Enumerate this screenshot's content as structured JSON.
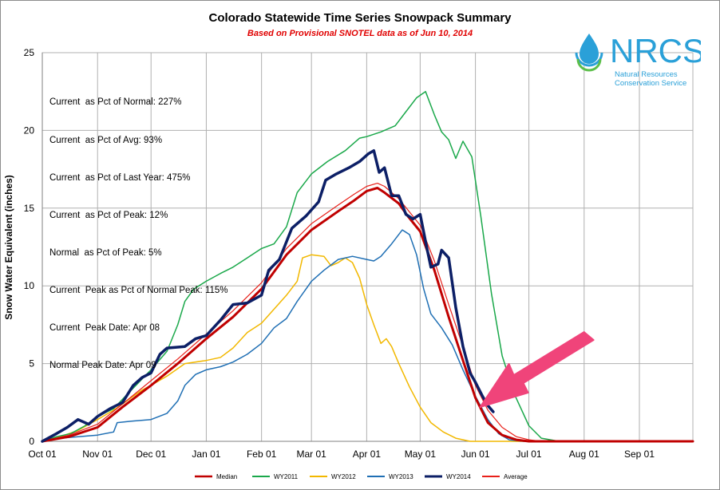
{
  "title": "Colorado Statewide Time Series Snowpack Summary",
  "subtitle": "Based on Provisional SNOTEL data as of Jun 10, 2014",
  "stats": [
    "Current  as Pct of Normal: 227%",
    "Current  as Pct of Avg: 93%",
    "Current  as Pct of Last Year: 475%",
    "Current  as Pct of Peak: 12%",
    "Normal  as Pct of Peak: 5%",
    "Current  Peak as Pct of Normal Peak: 115%",
    "Current  Peak Date: Apr 08",
    "Normal Peak Date: Apr 09"
  ],
  "logo": {
    "name": "NRCS",
    "line1": "Natural Resources",
    "line2": "Conservation Service",
    "color": "#2aa0d8"
  },
  "chart_data": {
    "type": "line",
    "ylabel": "Snow Water Equivalent (inches)",
    "xlabel": "",
    "ylim": [
      0,
      25
    ],
    "yticks": [
      0,
      5,
      10,
      15,
      20,
      25
    ],
    "x_ticks": [
      "Oct 01",
      "Nov 01",
      "Dec 01",
      "Jan 01",
      "Feb 01",
      "Mar 01",
      "Apr 01",
      "May 01",
      "Jun 01",
      "Jul 01",
      "Aug 01",
      "Sep 01"
    ],
    "x_tick_days": [
      0,
      31,
      61,
      92,
      123,
      151,
      182,
      212,
      243,
      273,
      304,
      335
    ],
    "xlim_days": [
      0,
      365
    ],
    "grid": true,
    "legend_position": "bottom",
    "series": [
      {
        "name": "Median",
        "color": "#c00000",
        "width": 3,
        "points": [
          [
            0,
            0
          ],
          [
            15,
            0.3
          ],
          [
            31,
            0.9
          ],
          [
            45,
            2.2
          ],
          [
            61,
            3.6
          ],
          [
            76,
            5.0
          ],
          [
            92,
            6.6
          ],
          [
            107,
            8.0
          ],
          [
            123,
            9.8
          ],
          [
            137,
            12.0
          ],
          [
            151,
            13.6
          ],
          [
            166,
            14.8
          ],
          [
            175,
            15.5
          ],
          [
            182,
            16.1
          ],
          [
            188,
            16.3
          ],
          [
            192,
            16.0
          ],
          [
            200,
            15.3
          ],
          [
            205,
            14.5
          ],
          [
            212,
            13.5
          ],
          [
            220,
            11.0
          ],
          [
            228,
            8.0
          ],
          [
            236,
            5.2
          ],
          [
            243,
            2.8
          ],
          [
            250,
            1.2
          ],
          [
            258,
            0.4
          ],
          [
            266,
            0.1
          ],
          [
            273,
            0
          ],
          [
            365,
            0
          ]
        ]
      },
      {
        "name": "WY2011",
        "color": "#1aa84a",
        "width": 1.5,
        "points": [
          [
            0,
            0
          ],
          [
            8,
            0.3
          ],
          [
            16,
            0.5
          ],
          [
            24,
            1.0
          ],
          [
            31,
            1.6
          ],
          [
            40,
            2.1
          ],
          [
            50,
            3.3
          ],
          [
            61,
            4.6
          ],
          [
            70,
            5.8
          ],
          [
            76,
            7.5
          ],
          [
            80,
            9.0
          ],
          [
            85,
            9.8
          ],
          [
            92,
            10.3
          ],
          [
            100,
            10.8
          ],
          [
            107,
            11.2
          ],
          [
            115,
            11.8
          ],
          [
            123,
            12.4
          ],
          [
            130,
            12.7
          ],
          [
            137,
            13.8
          ],
          [
            143,
            16.0
          ],
          [
            151,
            17.2
          ],
          [
            160,
            18.0
          ],
          [
            170,
            18.7
          ],
          [
            178,
            19.5
          ],
          [
            182,
            19.6
          ],
          [
            190,
            19.9
          ],
          [
            198,
            20.3
          ],
          [
            204,
            21.2
          ],
          [
            210,
            22.1
          ],
          [
            215,
            22.5
          ],
          [
            220,
            21.0
          ],
          [
            224,
            19.9
          ],
          [
            228,
            19.4
          ],
          [
            232,
            18.2
          ],
          [
            236,
            19.3
          ],
          [
            241,
            18.3
          ],
          [
            246,
            14.5
          ],
          [
            252,
            9.5
          ],
          [
            258,
            5.5
          ],
          [
            265,
            3.0
          ],
          [
            273,
            1.0
          ],
          [
            280,
            0.2
          ],
          [
            290,
            0
          ],
          [
            365,
            0
          ]
        ]
      },
      {
        "name": "WY2012",
        "color": "#f2b800",
        "width": 1.5,
        "points": [
          [
            0,
            0
          ],
          [
            10,
            0.3
          ],
          [
            20,
            0.7
          ],
          [
            31,
            1.4
          ],
          [
            40,
            2.0
          ],
          [
            45,
            2.4
          ],
          [
            51,
            2.9
          ],
          [
            56,
            3.3
          ],
          [
            61,
            3.6
          ],
          [
            70,
            4.2
          ],
          [
            80,
            5.0
          ],
          [
            92,
            5.2
          ],
          [
            100,
            5.4
          ],
          [
            107,
            6.0
          ],
          [
            115,
            7.0
          ],
          [
            123,
            7.6
          ],
          [
            130,
            8.5
          ],
          [
            137,
            9.4
          ],
          [
            143,
            10.3
          ],
          [
            146,
            11.8
          ],
          [
            151,
            12.0
          ],
          [
            158,
            11.9
          ],
          [
            162,
            11.3
          ],
          [
            166,
            11.5
          ],
          [
            170,
            11.8
          ],
          [
            174,
            11.5
          ],
          [
            178,
            10.5
          ],
          [
            182,
            8.8
          ],
          [
            186,
            7.5
          ],
          [
            190,
            6.3
          ],
          [
            193,
            6.6
          ],
          [
            196,
            6.1
          ],
          [
            200,
            5.0
          ],
          [
            206,
            3.5
          ],
          [
            212,
            2.2
          ],
          [
            218,
            1.2
          ],
          [
            225,
            0.6
          ],
          [
            232,
            0.2
          ],
          [
            240,
            0
          ],
          [
            365,
            0
          ]
        ]
      },
      {
        "name": "WY2013",
        "color": "#1f6fb4",
        "width": 1.5,
        "points": [
          [
            0,
            0
          ],
          [
            10,
            0.2
          ],
          [
            20,
            0.3
          ],
          [
            31,
            0.4
          ],
          [
            40,
            0.6
          ],
          [
            42,
            1.2
          ],
          [
            50,
            1.3
          ],
          [
            61,
            1.4
          ],
          [
            70,
            1.8
          ],
          [
            76,
            2.6
          ],
          [
            80,
            3.6
          ],
          [
            86,
            4.3
          ],
          [
            92,
            4.6
          ],
          [
            100,
            4.8
          ],
          [
            107,
            5.1
          ],
          [
            115,
            5.6
          ],
          [
            123,
            6.3
          ],
          [
            130,
            7.3
          ],
          [
            137,
            7.9
          ],
          [
            143,
            9.0
          ],
          [
            151,
            10.3
          ],
          [
            158,
            11.0
          ],
          [
            166,
            11.7
          ],
          [
            174,
            11.9
          ],
          [
            182,
            11.7
          ],
          [
            186,
            11.6
          ],
          [
            190,
            11.9
          ],
          [
            196,
            12.7
          ],
          [
            202,
            13.6
          ],
          [
            206,
            13.3
          ],
          [
            210,
            12.0
          ],
          [
            214,
            9.8
          ],
          [
            218,
            8.2
          ],
          [
            224,
            7.3
          ],
          [
            230,
            6.2
          ],
          [
            236,
            4.6
          ],
          [
            243,
            2.9
          ],
          [
            250,
            1.4
          ],
          [
            256,
            0.5
          ],
          [
            262,
            0.1
          ],
          [
            270,
            0
          ],
          [
            365,
            0
          ]
        ]
      },
      {
        "name": "WY2014",
        "color": "#0c1f66",
        "width": 3.5,
        "points": [
          [
            0,
            0
          ],
          [
            8,
            0.5
          ],
          [
            14,
            0.9
          ],
          [
            20,
            1.4
          ],
          [
            26,
            1.1
          ],
          [
            31,
            1.6
          ],
          [
            38,
            2.1
          ],
          [
            45,
            2.5
          ],
          [
            51,
            3.6
          ],
          [
            56,
            4.1
          ],
          [
            61,
            4.4
          ],
          [
            66,
            5.6
          ],
          [
            70,
            6.0
          ],
          [
            80,
            6.1
          ],
          [
            86,
            6.6
          ],
          [
            92,
            6.8
          ],
          [
            100,
            7.8
          ],
          [
            107,
            8.8
          ],
          [
            115,
            8.9
          ],
          [
            123,
            9.4
          ],
          [
            127,
            11.0
          ],
          [
            133,
            11.7
          ],
          [
            140,
            13.7
          ],
          [
            148,
            14.5
          ],
          [
            155,
            15.4
          ],
          [
            159,
            16.8
          ],
          [
            165,
            17.2
          ],
          [
            172,
            17.6
          ],
          [
            178,
            18.0
          ],
          [
            183,
            18.5
          ],
          [
            186,
            18.7
          ],
          [
            189,
            17.3
          ],
          [
            192,
            17.6
          ],
          [
            196,
            15.8
          ],
          [
            200,
            15.8
          ],
          [
            204,
            14.6
          ],
          [
            208,
            14.3
          ],
          [
            212,
            14.6
          ],
          [
            216,
            12.3
          ],
          [
            218,
            11.2
          ],
          [
            222,
            11.4
          ],
          [
            224,
            12.3
          ],
          [
            228,
            11.8
          ],
          [
            232,
            8.6
          ],
          [
            236,
            6.1
          ],
          [
            240,
            4.4
          ],
          [
            243,
            3.8
          ],
          [
            247,
            2.9
          ],
          [
            250,
            2.3
          ],
          [
            253,
            1.9
          ]
        ]
      },
      {
        "name": "Average",
        "color": "#e8201a",
        "width": 1.2,
        "points": [
          [
            0,
            0
          ],
          [
            15,
            0.4
          ],
          [
            31,
            1.1
          ],
          [
            45,
            2.4
          ],
          [
            61,
            3.9
          ],
          [
            76,
            5.3
          ],
          [
            92,
            6.9
          ],
          [
            107,
            8.4
          ],
          [
            123,
            10.2
          ],
          [
            137,
            12.4
          ],
          [
            151,
            14.0
          ],
          [
            166,
            15.2
          ],
          [
            175,
            15.9
          ],
          [
            182,
            16.4
          ],
          [
            188,
            16.6
          ],
          [
            192,
            16.4
          ],
          [
            200,
            15.6
          ],
          [
            205,
            14.9
          ],
          [
            212,
            13.9
          ],
          [
            220,
            11.6
          ],
          [
            228,
            8.8
          ],
          [
            236,
            6.1
          ],
          [
            243,
            3.6
          ],
          [
            250,
            2.0
          ],
          [
            258,
            0.9
          ],
          [
            266,
            0.3
          ],
          [
            273,
            0.1
          ],
          [
            280,
            0
          ],
          [
            365,
            0
          ]
        ]
      }
    ],
    "annotation": {
      "type": "arrow",
      "color": "#f0447a",
      "points_to_day": 243,
      "points_to_value": 2.0
    }
  }
}
